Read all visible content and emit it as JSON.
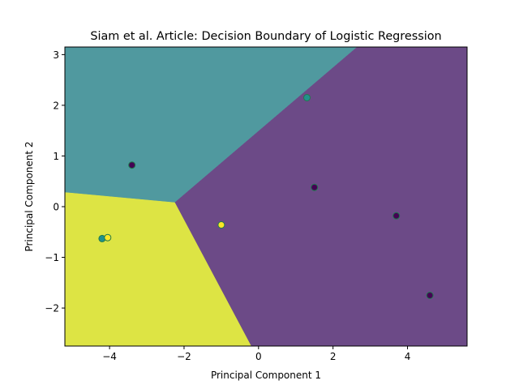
{
  "chart_data": {
    "type": "scatter",
    "title": "Siam et al. Article: Decision Boundary of Logistic Regression",
    "xlabel": "Principal Component 1",
    "ylabel": "Principal Component 2",
    "xlim": [
      -5.2,
      5.6
    ],
    "ylim": [
      -2.75,
      3.15
    ],
    "xticks": [
      -4,
      -2,
      0,
      2,
      4
    ],
    "yticks": [
      -2,
      -1,
      0,
      1,
      2,
      3
    ],
    "xtick_labels": [
      "−4",
      "−2",
      "0",
      "2",
      "4"
    ],
    "ytick_labels": [
      "−2",
      "−1",
      "0",
      "1",
      "2",
      "3"
    ],
    "grid": false,
    "regions": [
      {
        "class": "teal",
        "color": "#50999f",
        "polygon": [
          [
            -5.2,
            0.28
          ],
          [
            -2.25,
            0.08
          ],
          [
            2.65,
            3.15
          ],
          [
            -5.2,
            3.15
          ]
        ]
      },
      {
        "class": "purple",
        "color": "#6c4a87",
        "polygon": [
          [
            -2.25,
            0.08
          ],
          [
            2.65,
            3.15
          ],
          [
            5.6,
            3.15
          ],
          [
            5.6,
            -2.75
          ],
          [
            -0.2,
            -2.75
          ]
        ]
      },
      {
        "class": "yellow",
        "color": "#dde444",
        "polygon": [
          [
            -5.2,
            0.28
          ],
          [
            -2.25,
            0.08
          ],
          [
            -0.2,
            -2.75
          ],
          [
            -5.2,
            -2.75
          ]
        ]
      }
    ],
    "points": [
      {
        "x": -3.4,
        "y": 0.82,
        "color": "#440154"
      },
      {
        "x": 1.3,
        "y": 2.15,
        "color": "#21918c"
      },
      {
        "x": 1.5,
        "y": 0.38,
        "color": "#440154"
      },
      {
        "x": 3.7,
        "y": -0.18,
        "color": "#440154"
      },
      {
        "x": 4.6,
        "y": -1.75,
        "color": "#440154"
      },
      {
        "x": -1.0,
        "y": -0.36,
        "color": "#fde725"
      },
      {
        "x": -4.2,
        "y": -0.63,
        "color": "#21918c"
      },
      {
        "x": -4.05,
        "y": -0.61,
        "color": "#fde725"
      }
    ],
    "point_edge_color": "#1f7a4d"
  }
}
